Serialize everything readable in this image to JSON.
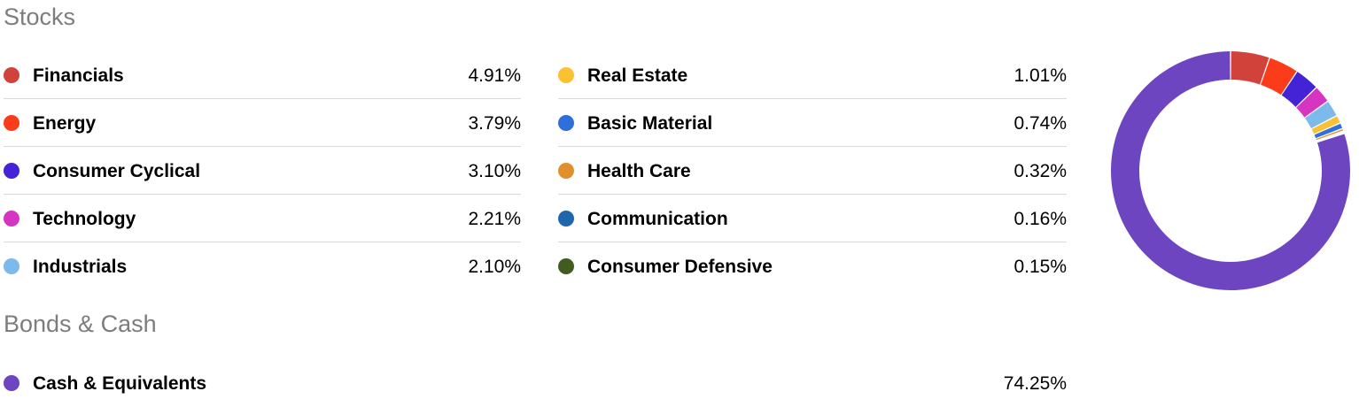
{
  "stocks": {
    "title": "Stocks",
    "left": [
      {
        "label": "Financials",
        "value": "4.91%",
        "color": "#d1423a"
      },
      {
        "label": "Energy",
        "value": "3.79%",
        "color": "#fa3c1a"
      },
      {
        "label": "Consumer Cyclical",
        "value": "3.10%",
        "color": "#4423d6"
      },
      {
        "label": "Technology",
        "value": "2.21%",
        "color": "#d535c1"
      },
      {
        "label": "Industrials",
        "value": "2.10%",
        "color": "#7cb9ec"
      }
    ],
    "right": [
      {
        "label": "Real Estate",
        "value": "1.01%",
        "color": "#fbc133"
      },
      {
        "label": "Basic Material",
        "value": "0.74%",
        "color": "#2f6fdb"
      },
      {
        "label": "Health Care",
        "value": "0.32%",
        "color": "#e08f2c"
      },
      {
        "label": "Communication",
        "value": "0.16%",
        "color": "#1f67aa"
      },
      {
        "label": "Consumer Defensive",
        "value": "0.15%",
        "color": "#405c1f"
      }
    ]
  },
  "bonds": {
    "title": "Bonds & Cash",
    "items": [
      {
        "label": "Cash & Equivalents",
        "value": "74.25%",
        "color": "#6d45c0"
      }
    ]
  },
  "chart_data": {
    "type": "pie",
    "donut": true,
    "categories": [
      "Financials",
      "Energy",
      "Consumer Cyclical",
      "Technology",
      "Industrials",
      "Real Estate",
      "Basic Material",
      "Health Care",
      "Communication",
      "Consumer Defensive",
      "Cash & Equivalents"
    ],
    "values": [
      4.91,
      3.79,
      3.1,
      2.21,
      2.1,
      1.01,
      0.74,
      0.32,
      0.16,
      0.15,
      74.25
    ],
    "colors": [
      "#d1423a",
      "#fa3c1a",
      "#4423d6",
      "#d535c1",
      "#7cb9ec",
      "#fbc133",
      "#2f6fdb",
      "#e08f2c",
      "#1f67aa",
      "#405c1f",
      "#6d45c0"
    ],
    "title": "",
    "legend_placement": "left"
  }
}
